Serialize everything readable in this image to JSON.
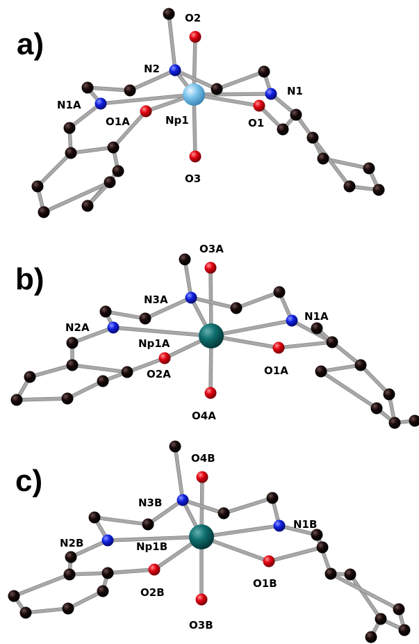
{
  "colors": {
    "carbon": "#1a0a0a",
    "nitrogen": "#1020e0",
    "oxygen": "#e00010",
    "np_a": "#7cc4ec",
    "np_b": "#0e6e6e",
    "bond": "#a8a8a8"
  },
  "panels": [
    {
      "label": "a)",
      "metal_color_key": "np_a",
      "atoms": [
        {
          "id": "Np1",
          "el": "Np",
          "label": "Np1"
        },
        {
          "id": "O2",
          "el": "O",
          "label": "O2"
        },
        {
          "id": "O3",
          "el": "O",
          "label": "O3"
        },
        {
          "id": "N2",
          "el": "N",
          "label": "N2"
        },
        {
          "id": "N1",
          "el": "N",
          "label": "N1"
        },
        {
          "id": "N1A",
          "el": "N",
          "label": "N1A"
        },
        {
          "id": "O1",
          "el": "O",
          "label": "O1"
        },
        {
          "id": "O1A",
          "el": "O",
          "label": "O1A"
        }
      ]
    },
    {
      "label": "b)",
      "metal_color_key": "np_b",
      "atoms": [
        {
          "id": "Np1A",
          "el": "Np",
          "label": "Np1A"
        },
        {
          "id": "O3A",
          "el": "O",
          "label": "O3A"
        },
        {
          "id": "O4A",
          "el": "O",
          "label": "O4A"
        },
        {
          "id": "N3A",
          "el": "N",
          "label": "N3A"
        },
        {
          "id": "N1A",
          "el": "N",
          "label": "N1A"
        },
        {
          "id": "N2A",
          "el": "N",
          "label": "N2A"
        },
        {
          "id": "O1A",
          "el": "O",
          "label": "O1A"
        },
        {
          "id": "O2A",
          "el": "O",
          "label": "O2A"
        }
      ]
    },
    {
      "label": "c)",
      "metal_color_key": "np_b",
      "atoms": [
        {
          "id": "Np1B",
          "el": "Np",
          "label": "Np1B"
        },
        {
          "id": "O4B",
          "el": "O",
          "label": "O4B"
        },
        {
          "id": "O3B",
          "el": "O",
          "label": "O3B"
        },
        {
          "id": "N3B",
          "el": "N",
          "label": "N3B"
        },
        {
          "id": "N1B",
          "el": "N",
          "label": "N1B"
        },
        {
          "id": "N2B",
          "el": "N",
          "label": "N2B"
        },
        {
          "id": "O1B",
          "el": "O",
          "label": "O1B"
        },
        {
          "id": "O2B",
          "el": "O",
          "label": "O2B"
        }
      ]
    }
  ]
}
